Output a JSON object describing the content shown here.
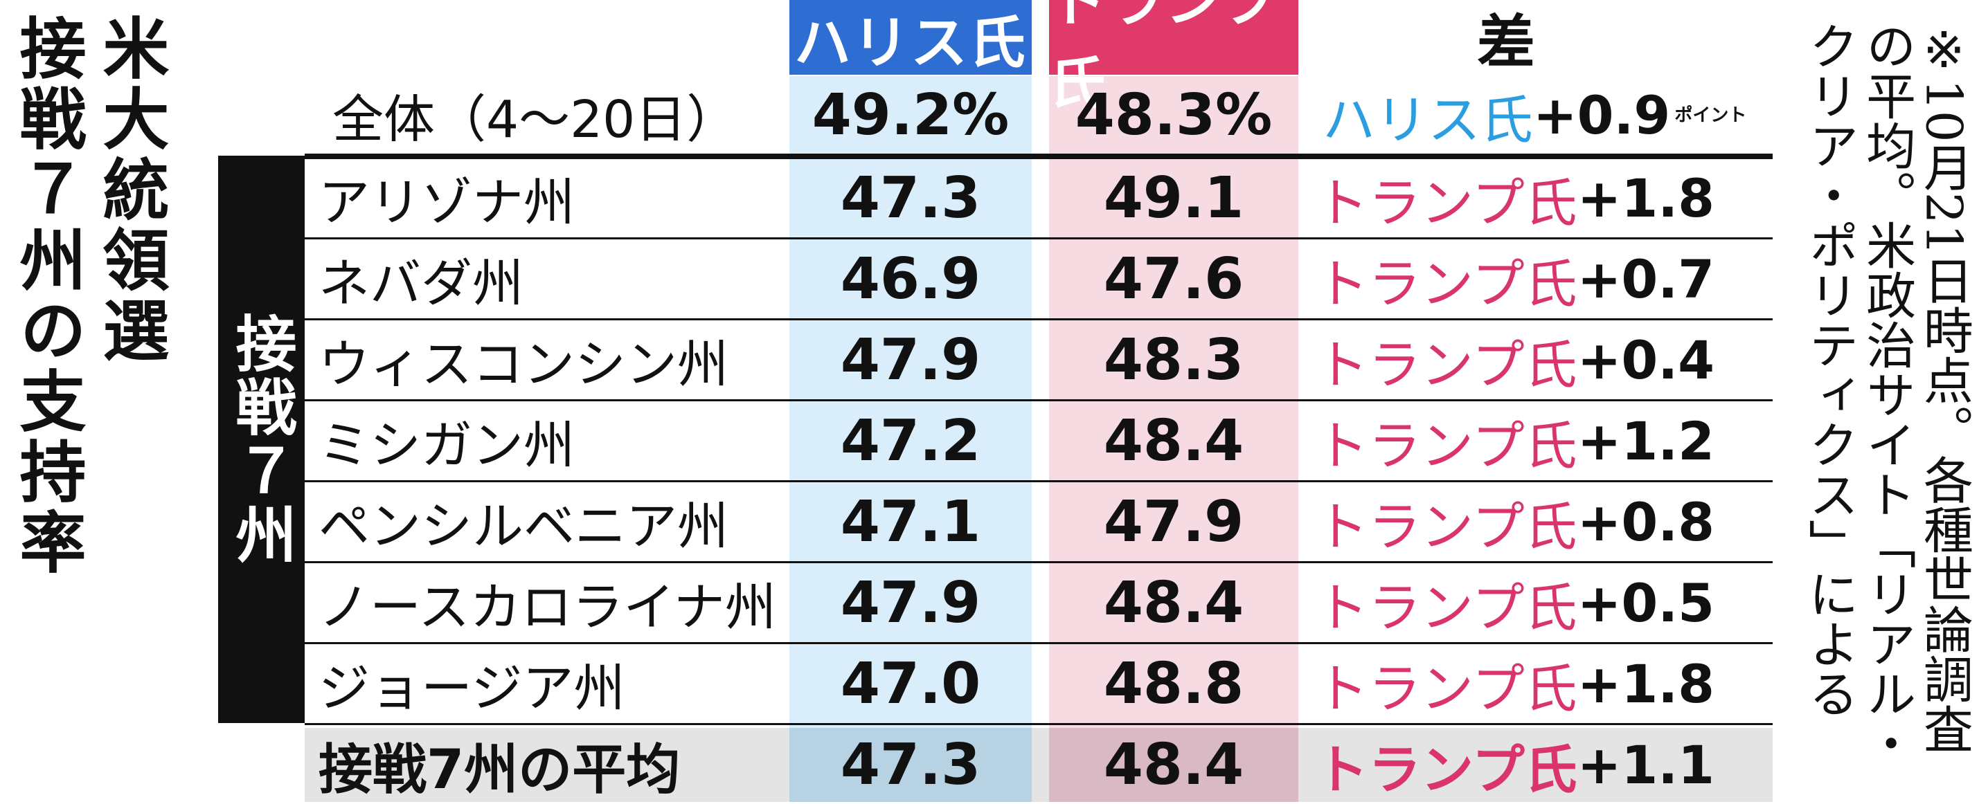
{
  "title": {
    "line1": "米大統領選",
    "line2": "接戦７州の支持率"
  },
  "headers": {
    "harris": "ハリス氏",
    "trump": "トランプ氏",
    "diff": "差"
  },
  "side_label": "接戦７州",
  "point_unit": "ポイント",
  "note": "※10月21日時点。各種世論調査の平均。米政治サイト「リアル・クリア・ポリティクス」による",
  "colors": {
    "harris_header": "#2e6dd1",
    "trump_header": "#e03a6b",
    "harris_text": "#2a9ee0",
    "trump_text": "#d9356a",
    "harris_column": "#d9eefa",
    "trump_column": "#f7dbe3"
  },
  "chart_data": {
    "type": "table",
    "columns": [
      "",
      "ハリス氏",
      "トランプ氏",
      "差"
    ],
    "national": {
      "label": "全体（4～20日）",
      "harris": "49.2%",
      "trump": "48.3%",
      "leader": "ハリス氏",
      "margin": "+0.9"
    },
    "states": [
      {
        "label": "アリゾナ州",
        "harris": "47.3",
        "trump": "49.1",
        "leader": "トランプ氏",
        "margin": "+1.8"
      },
      {
        "label": "ネバダ州",
        "harris": "46.9",
        "trump": "47.6",
        "leader": "トランプ氏",
        "margin": "+0.7"
      },
      {
        "label": "ウィスコンシン州",
        "harris": "47.9",
        "trump": "48.3",
        "leader": "トランプ氏",
        "margin": "+0.4"
      },
      {
        "label": "ミシガン州",
        "harris": "47.2",
        "trump": "48.4",
        "leader": "トランプ氏",
        "margin": "+1.2"
      },
      {
        "label": "ペンシルベニア州",
        "harris": "47.1",
        "trump": "47.9",
        "leader": "トランプ氏",
        "margin": "+0.8"
      },
      {
        "label": "ノースカロライナ州",
        "harris": "47.9",
        "trump": "48.4",
        "leader": "トランプ氏",
        "margin": "+0.5"
      },
      {
        "label": "ジョージア州",
        "harris": "47.0",
        "trump": "48.8",
        "leader": "トランプ氏",
        "margin": "+1.8"
      }
    ],
    "average": {
      "label": "接戦7州の平均",
      "harris": "47.3",
      "trump": "48.4",
      "leader": "トランプ氏",
      "margin": "+1.1"
    }
  }
}
